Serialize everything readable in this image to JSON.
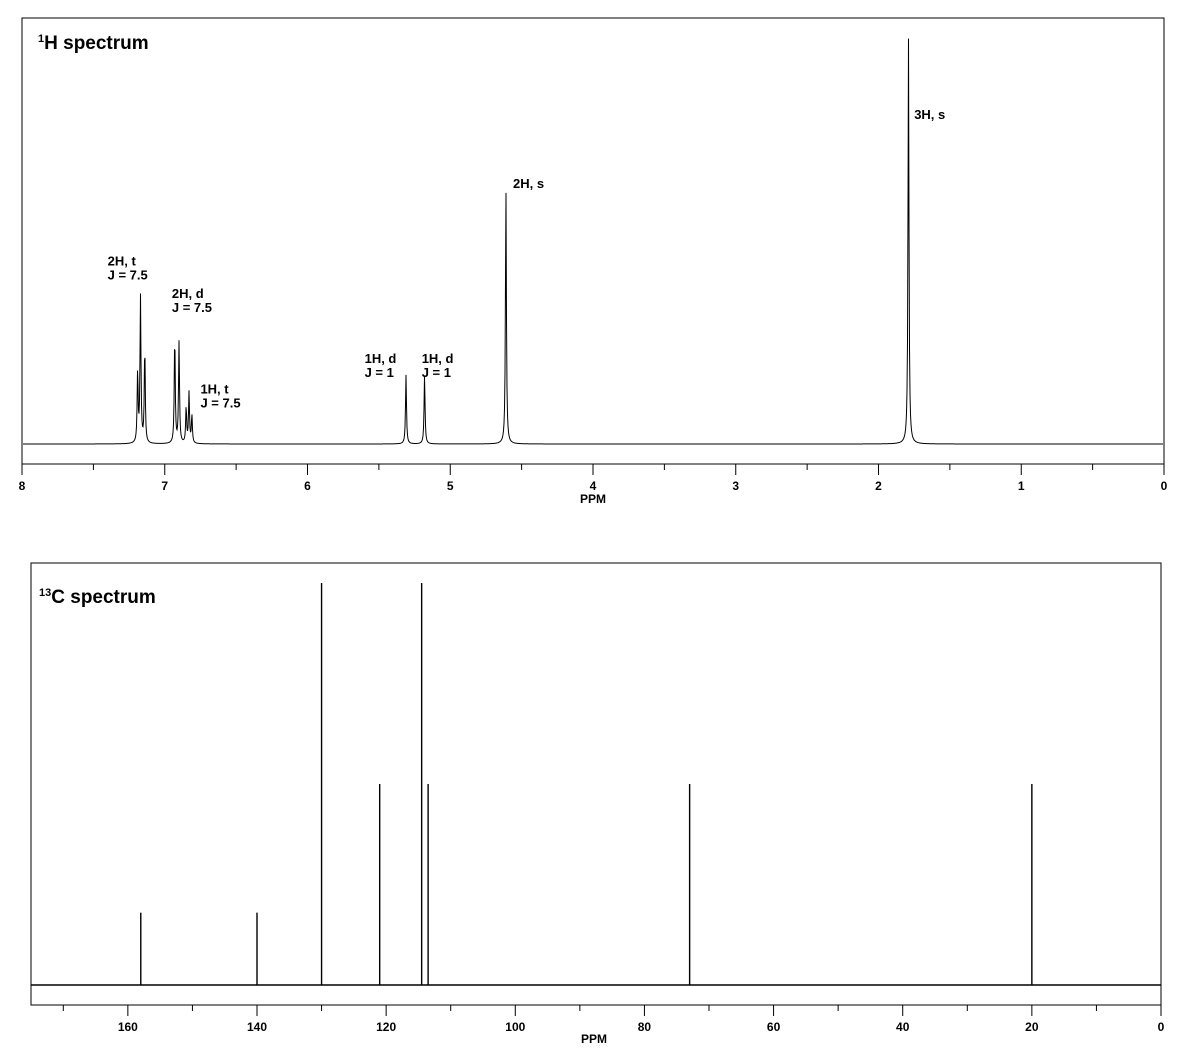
{
  "chart_data": [
    {
      "type": "line",
      "title_sup": "1",
      "title_main": "H spectrum",
      "xlabel": "PPM",
      "xlim": [
        8,
        0
      ],
      "x_reversed": true,
      "ylim": [
        0,
        1.0
      ],
      "grid": false,
      "x_ticks": [
        8,
        7,
        6,
        5,
        4,
        3,
        2,
        1,
        0
      ],
      "x_tick_labels": [
        "8",
        "7",
        "6",
        "5",
        "4",
        "3",
        "2",
        "1",
        "0"
      ],
      "peaks": [
        {
          "ppm": 7.19,
          "height": 0.175
        },
        {
          "ppm": 7.17,
          "height": 0.36
        },
        {
          "ppm": 7.14,
          "height": 0.24
        },
        {
          "ppm": 6.93,
          "height": 0.27
        },
        {
          "ppm": 6.9,
          "height": 0.25
        },
        {
          "ppm": 6.85,
          "height": 0.09
        },
        {
          "ppm": 6.83,
          "height": 0.125
        },
        {
          "ppm": 6.81,
          "height": 0.07
        },
        {
          "ppm": 5.31,
          "height": 0.17
        },
        {
          "ppm": 5.18,
          "height": 0.17
        },
        {
          "ppm": 4.61,
          "height": 0.63
        },
        {
          "ppm": 1.79,
          "height": 1.0
        }
      ],
      "annotations": [
        {
          "ppm": 7.4,
          "level": 0.44,
          "lines": [
            "2H, t",
            "J = 7.5"
          ]
        },
        {
          "ppm": 6.95,
          "level": 0.36,
          "lines": [
            "2H, d",
            "J = 7.5"
          ]
        },
        {
          "ppm": 6.75,
          "level": 0.125,
          "lines": [
            "1H, t",
            "J = 7.5"
          ]
        },
        {
          "ppm": 5.6,
          "level": 0.2,
          "lines": [
            "1H, d",
            "J = 1"
          ]
        },
        {
          "ppm": 5.2,
          "level": 0.2,
          "lines": [
            "1H, d",
            "J = 1"
          ]
        },
        {
          "ppm": 4.56,
          "level": 0.63,
          "lines": [
            "2H, s"
          ]
        },
        {
          "ppm": 1.75,
          "level": 0.8,
          "lines": [
            "3H, s"
          ]
        }
      ]
    },
    {
      "type": "bar",
      "title_sup": "13",
      "title_main": "C spectrum",
      "xlabel": "PPM",
      "xlim": [
        175,
        0
      ],
      "x_reversed": true,
      "ylim": [
        0,
        1.0
      ],
      "grid": false,
      "x_ticks": [
        160,
        140,
        120,
        100,
        80,
        60,
        40,
        20,
        0
      ],
      "x_tick_labels": [
        "160",
        "140",
        "120",
        "100",
        "80",
        "60",
        "40",
        "20",
        "0"
      ],
      "peaks": [
        {
          "ppm": 158,
          "height": 0.18
        },
        {
          "ppm": 140,
          "height": 0.18
        },
        {
          "ppm": 130,
          "height": 1.0
        },
        {
          "ppm": 121,
          "height": 0.5
        },
        {
          "ppm": 114.5,
          "height": 1.0
        },
        {
          "ppm": 113.5,
          "height": 0.5
        },
        {
          "ppm": 73,
          "height": 0.5
        },
        {
          "ppm": 20,
          "height": 0.5
        }
      ]
    }
  ]
}
